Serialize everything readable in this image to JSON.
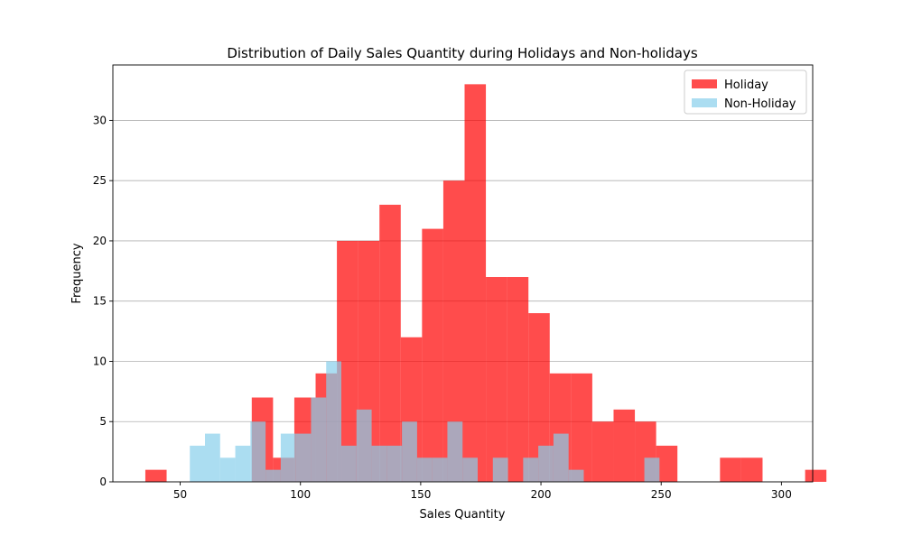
{
  "chart_data": {
    "type": "histogram",
    "title": "Distribution of Daily Sales Quantity during Holidays and Non-holidays",
    "xlabel": "Sales Quantity",
    "ylabel": "Frequency",
    "xlim": [
      22,
      313
    ],
    "ylim": [
      0,
      34.6
    ],
    "xticks": [
      50,
      100,
      150,
      200,
      250,
      300
    ],
    "yticks": [
      0,
      5,
      10,
      15,
      20,
      25,
      30
    ],
    "grid": "y",
    "legend_position": "top-right",
    "series": [
      {
        "name": "Holiday",
        "color": "#ff0000",
        "opacity": 0.7,
        "bin_start": 35.5,
        "bin_width": 8.85,
        "counts": [
          1,
          0,
          0,
          0,
          0,
          7,
          2,
          7,
          9,
          20,
          20,
          23,
          12,
          21,
          25,
          33,
          17,
          17,
          14,
          9,
          9,
          5,
          6,
          5,
          3,
          0,
          0,
          2,
          2,
          0,
          0,
          1
        ]
      },
      {
        "name": "Non-Holiday",
        "color": "#87ceeb",
        "opacity": 0.7,
        "bin_start": 54.0,
        "bin_width": 6.3,
        "counts": [
          3,
          4,
          2,
          3,
          5,
          1,
          4,
          4,
          7,
          10,
          3,
          6,
          3,
          3,
          5,
          2,
          2,
          5,
          2,
          0,
          2,
          0,
          2,
          3,
          4,
          1,
          0,
          0,
          0,
          0,
          2
        ]
      }
    ]
  }
}
